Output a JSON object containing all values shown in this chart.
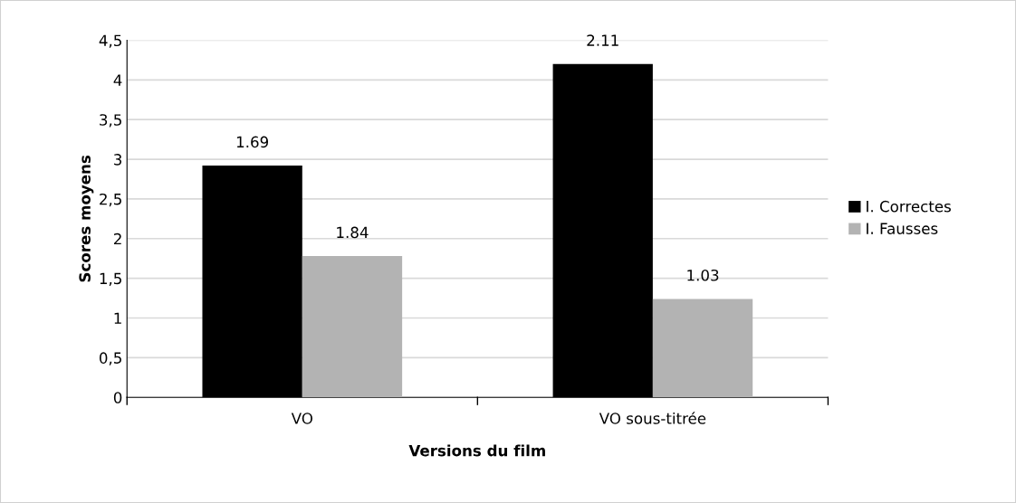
{
  "chart_data": {
    "type": "bar",
    "xlabel": "Versions du film",
    "ylabel": "Scores moyens",
    "categories": [
      "VO",
      "VO sous-titrée"
    ],
    "series": [
      {
        "name": "I. Correctes",
        "color": "#000000",
        "values": [
          2.92,
          4.2
        ]
      },
      {
        "name": "I. Fausses",
        "color": "#b3b3b3",
        "values": [
          1.78,
          1.24
        ]
      }
    ],
    "annotations": [
      {
        "text": "1.69",
        "x": "VO",
        "y": 2.92
      },
      {
        "text": "1.84",
        "x": "VO",
        "y": 1.78
      },
      {
        "text": "2.11",
        "x": "VO sous-titrée",
        "y": 4.2
      },
      {
        "text": "1.03",
        "x": "VO sous-titrée",
        "y": 1.24
      }
    ],
    "ylim": [
      0,
      4.5
    ],
    "yticks": [
      {
        "value": 0,
        "label": "0"
      },
      {
        "value": 0.5,
        "label": "0,5"
      },
      {
        "value": 1,
        "label": "1"
      },
      {
        "value": 1.5,
        "label": "1,5"
      },
      {
        "value": 2,
        "label": "2"
      },
      {
        "value": 2.5,
        "label": "2,5"
      },
      {
        "value": 3,
        "label": "3"
      },
      {
        "value": 3.5,
        "label": "3,5"
      },
      {
        "value": 4,
        "label": "4"
      },
      {
        "value": 4.5,
        "label": "4,5"
      }
    ],
    "grid": "y",
    "legend": "right"
  }
}
